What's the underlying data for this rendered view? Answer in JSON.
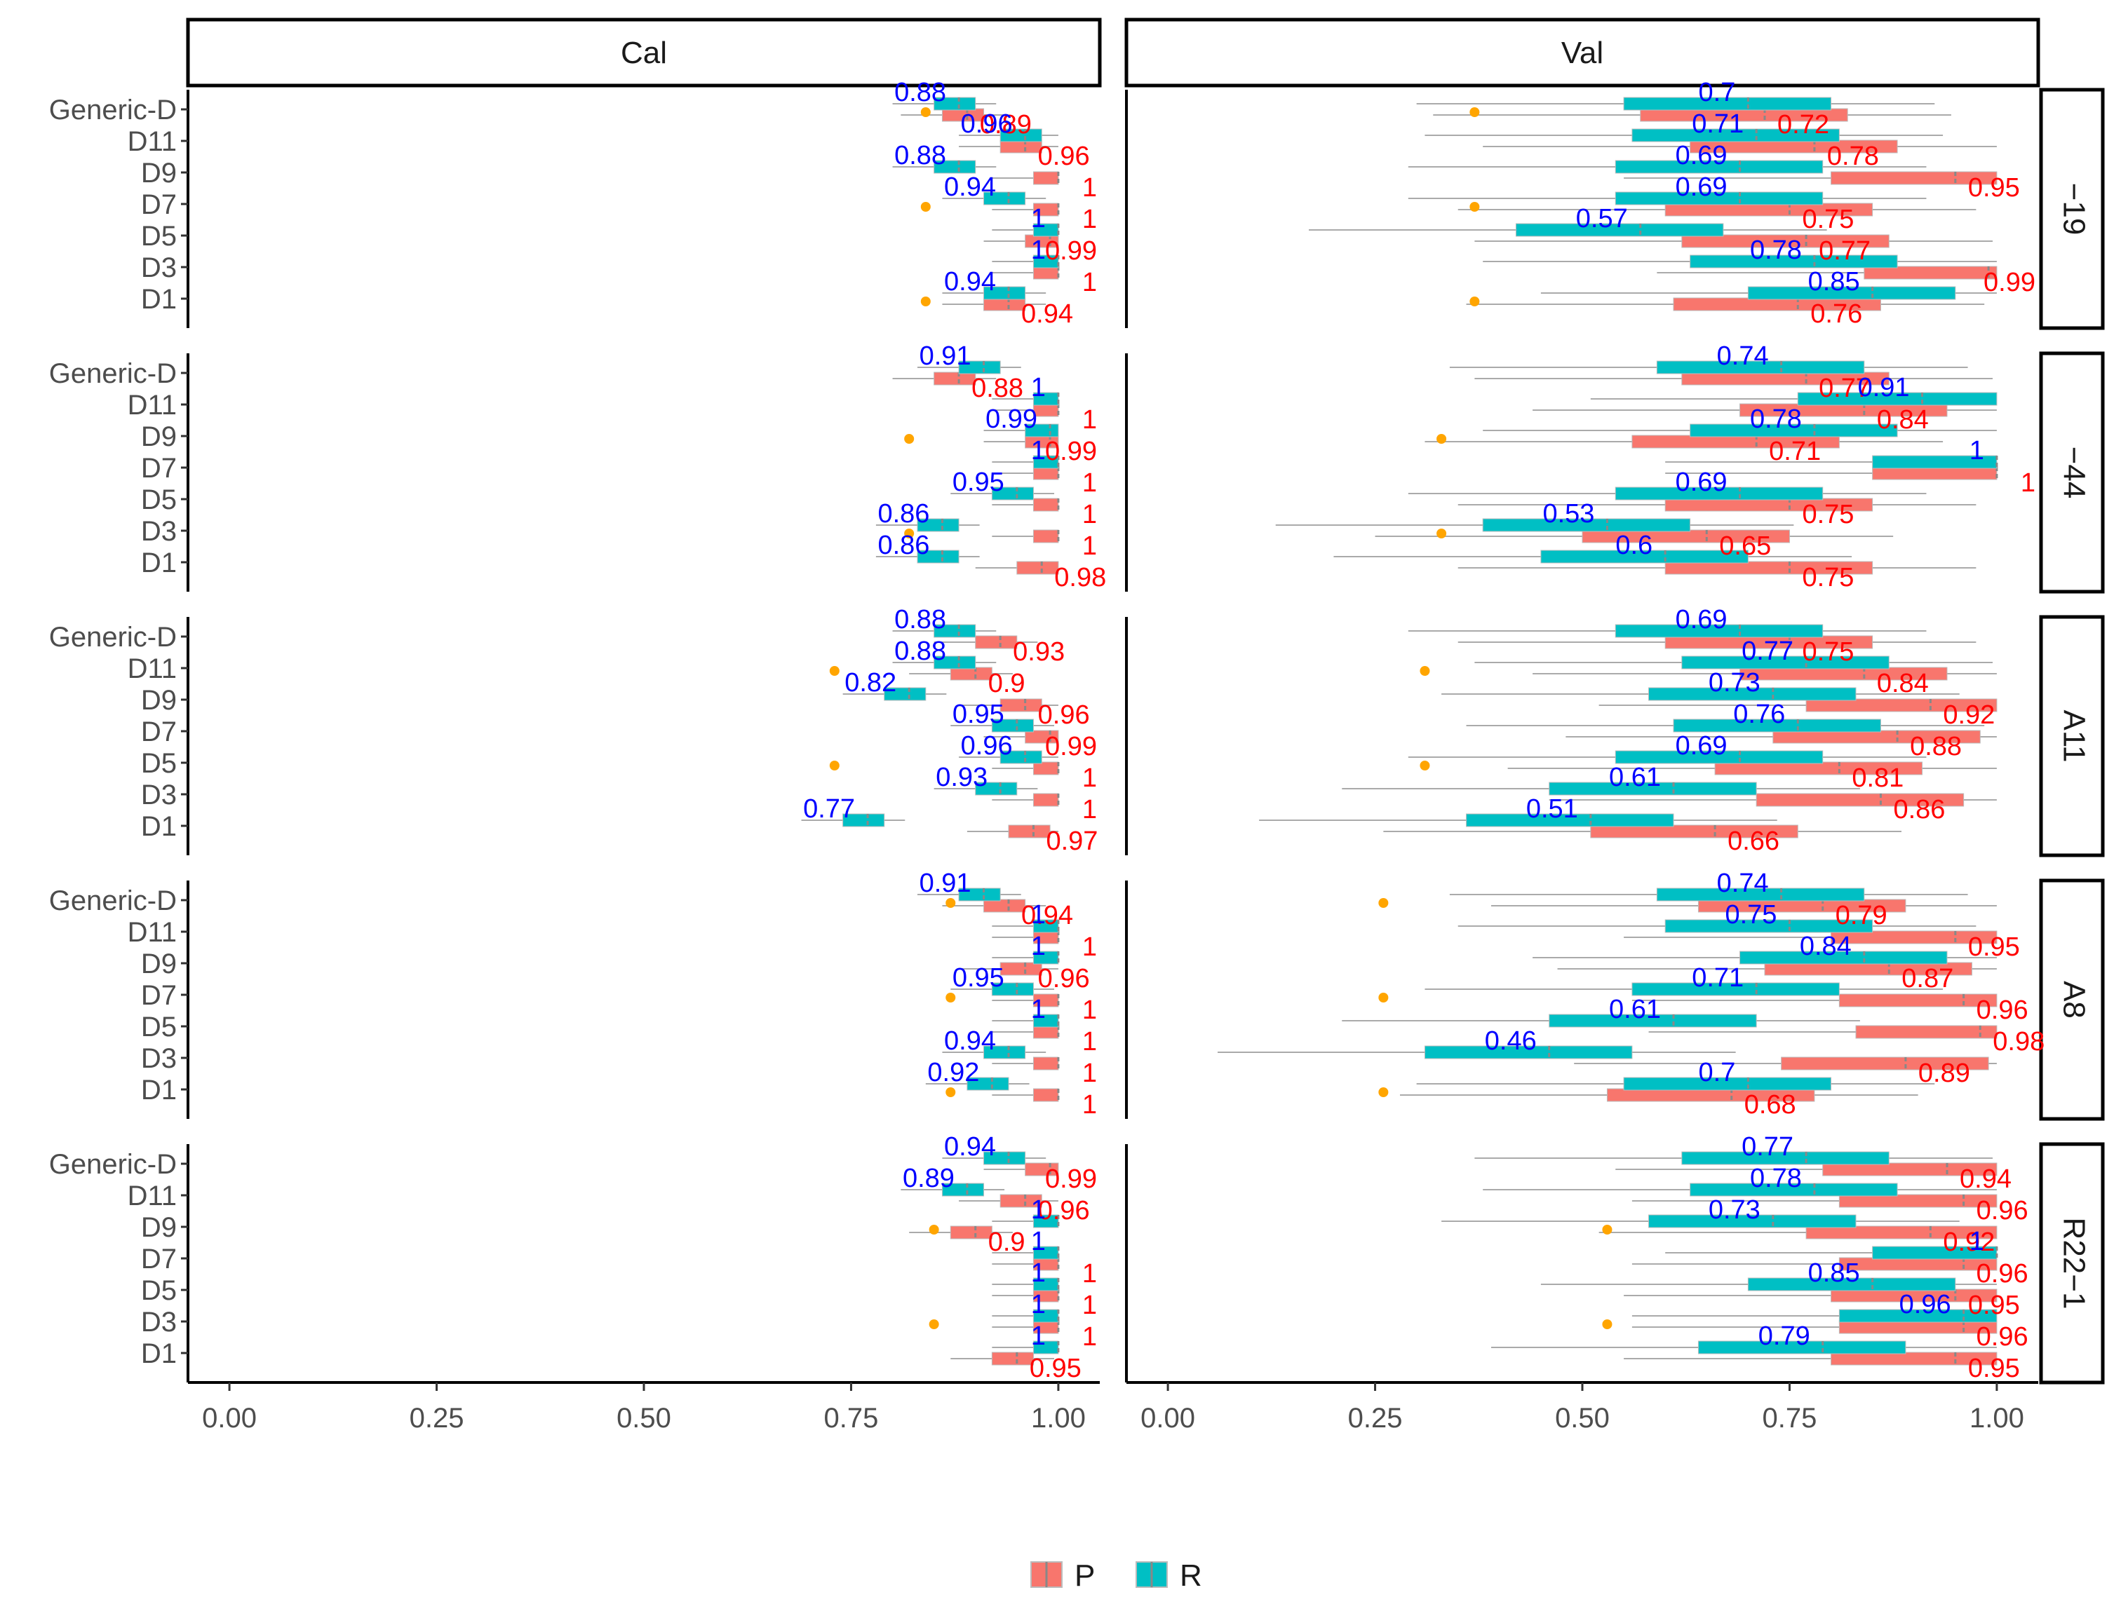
{
  "chart_data": {
    "type": "boxplot",
    "panels_x": [
      "Cal",
      "Val"
    ],
    "panels_y": [
      "−19",
      "−44",
      "A11",
      "A8",
      "R22−1"
    ],
    "categories": [
      "Generic-D",
      "D11",
      "D9",
      "D7",
      "D5",
      "D3",
      "D1"
    ],
    "x_ticks": [
      "0.00",
      "0.25",
      "0.50",
      "0.75",
      "1.00"
    ],
    "xlim": [
      -0.05,
      1.05
    ],
    "legend": {
      "entries": [
        {
          "name": "P",
          "color": "#F8766D"
        },
        {
          "name": "R",
          "color": "#00BFC4"
        }
      ],
      "placement": "bottom"
    },
    "colors": {
      "P": "#F8766D",
      "R": "#00BFC4",
      "outlier": "#FFA500",
      "label_P": "#FF0000",
      "label_R": "#0000FF"
    },
    "panels": [
      {
        "col": "Cal",
        "row": "−19",
        "P": [
          0.89,
          0.96,
          1,
          1,
          0.99,
          1,
          0.94
        ],
        "R": [
          0.88,
          0.96,
          0.88,
          0.94,
          1,
          1,
          0.94
        ]
      },
      {
        "col": "Cal",
        "row": "−44",
        "P": [
          0.88,
          1,
          0.99,
          1,
          1,
          1,
          0.98
        ],
        "R": [
          0.91,
          1,
          0.99,
          1,
          0.95,
          0.86,
          0.86
        ]
      },
      {
        "col": "Cal",
        "row": "A11",
        "P": [
          0.93,
          0.9,
          0.96,
          0.99,
          1,
          1,
          0.97
        ],
        "R": [
          0.88,
          0.88,
          0.82,
          0.95,
          0.96,
          0.93,
          0.77
        ]
      },
      {
        "col": "Cal",
        "row": "A8",
        "P": [
          0.94,
          1,
          0.96,
          1,
          1,
          1,
          1
        ],
        "R": [
          0.91,
          1,
          1,
          0.95,
          1,
          0.94,
          0.92
        ]
      },
      {
        "col": "Cal",
        "row": "R22−1",
        "P": [
          0.99,
          0.96,
          0.9,
          1,
          1,
          1,
          0.95
        ],
        "R": [
          0.94,
          0.89,
          1,
          1,
          1,
          1,
          1
        ]
      },
      {
        "col": "Val",
        "row": "−19",
        "P": [
          0.72,
          0.78,
          0.95,
          0.75,
          0.77,
          0.99,
          0.76
        ],
        "R": [
          0.7,
          0.71,
          0.69,
          0.69,
          0.57,
          0.78,
          0.85
        ]
      },
      {
        "col": "Val",
        "row": "−44",
        "P": [
          0.77,
          0.84,
          0.71,
          1,
          0.75,
          0.65,
          0.75
        ],
        "R": [
          0.74,
          0.91,
          0.78,
          1,
          0.69,
          0.53,
          0.6
        ]
      },
      {
        "col": "Val",
        "row": "A11",
        "P": [
          0.75,
          0.84,
          0.92,
          0.88,
          0.81,
          0.86,
          0.66
        ],
        "R": [
          0.69,
          0.77,
          0.73,
          0.76,
          0.69,
          0.61,
          0.51
        ]
      },
      {
        "col": "Val",
        "row": "A8",
        "P": [
          0.79,
          0.95,
          0.87,
          0.96,
          0.98,
          0.89,
          0.68
        ],
        "R": [
          0.74,
          0.75,
          0.84,
          0.71,
          0.61,
          0.46,
          0.7
        ]
      },
      {
        "col": "Val",
        "row": "R22−1",
        "P": [
          0.94,
          0.96,
          0.92,
          0.96,
          0.95,
          0.96,
          0.95
        ],
        "R": [
          0.77,
          0.78,
          0.73,
          1,
          0.85,
          0.96,
          0.79
        ]
      }
    ]
  }
}
